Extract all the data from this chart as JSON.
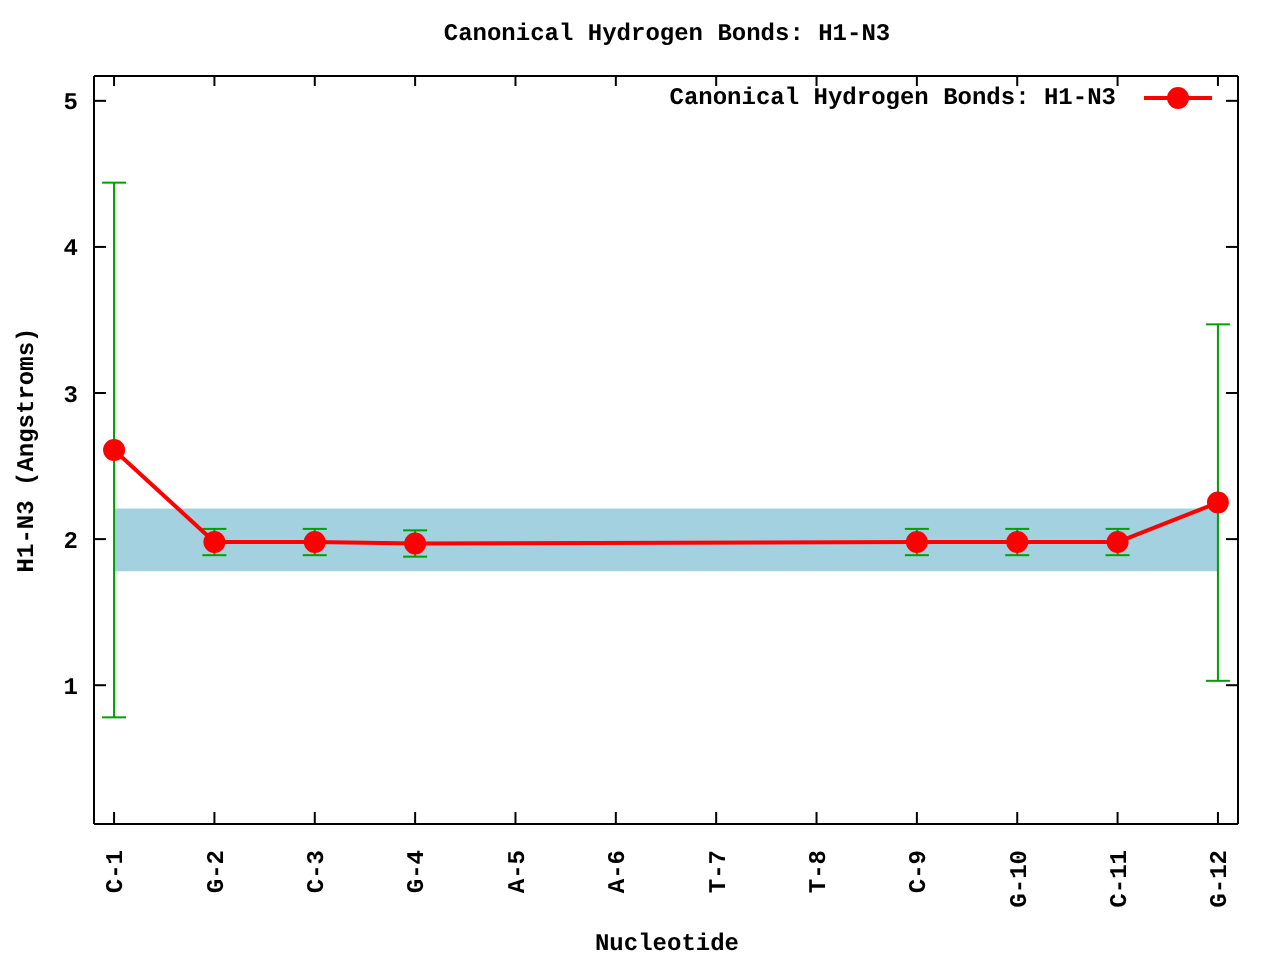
{
  "chart_data": {
    "type": "line",
    "title": "Canonical Hydrogen Bonds: H1-N3",
    "xlabel": "Nucleotide",
    "ylabel": "H1-N3 (Angstroms)",
    "categories": [
      "C-1",
      "G-2",
      "C-3",
      "G-4",
      "A-5",
      "A-6",
      "T-7",
      "T-8",
      "C-9",
      "G-10",
      "C-11",
      "G-12"
    ],
    "series": [
      {
        "name": "Canonical Hydrogen Bonds: H1-N3",
        "color": "#ff0000",
        "values": [
          2.61,
          1.98,
          1.98,
          1.97,
          null,
          null,
          null,
          null,
          1.98,
          1.98,
          1.98,
          2.25
        ],
        "errors": [
          1.83,
          0.09,
          0.09,
          0.09,
          null,
          null,
          null,
          null,
          0.09,
          0.09,
          0.09,
          1.22
        ]
      }
    ],
    "ylim": [
      0.05,
      5.17
    ],
    "yticks": [
      1,
      2,
      3,
      4,
      5
    ],
    "bands": [
      {
        "axis": "y",
        "from": 1.78,
        "to": 2.21,
        "color": "#a3d1df"
      }
    ],
    "legend": "top right",
    "marker": "circle",
    "line_style": "solid"
  }
}
